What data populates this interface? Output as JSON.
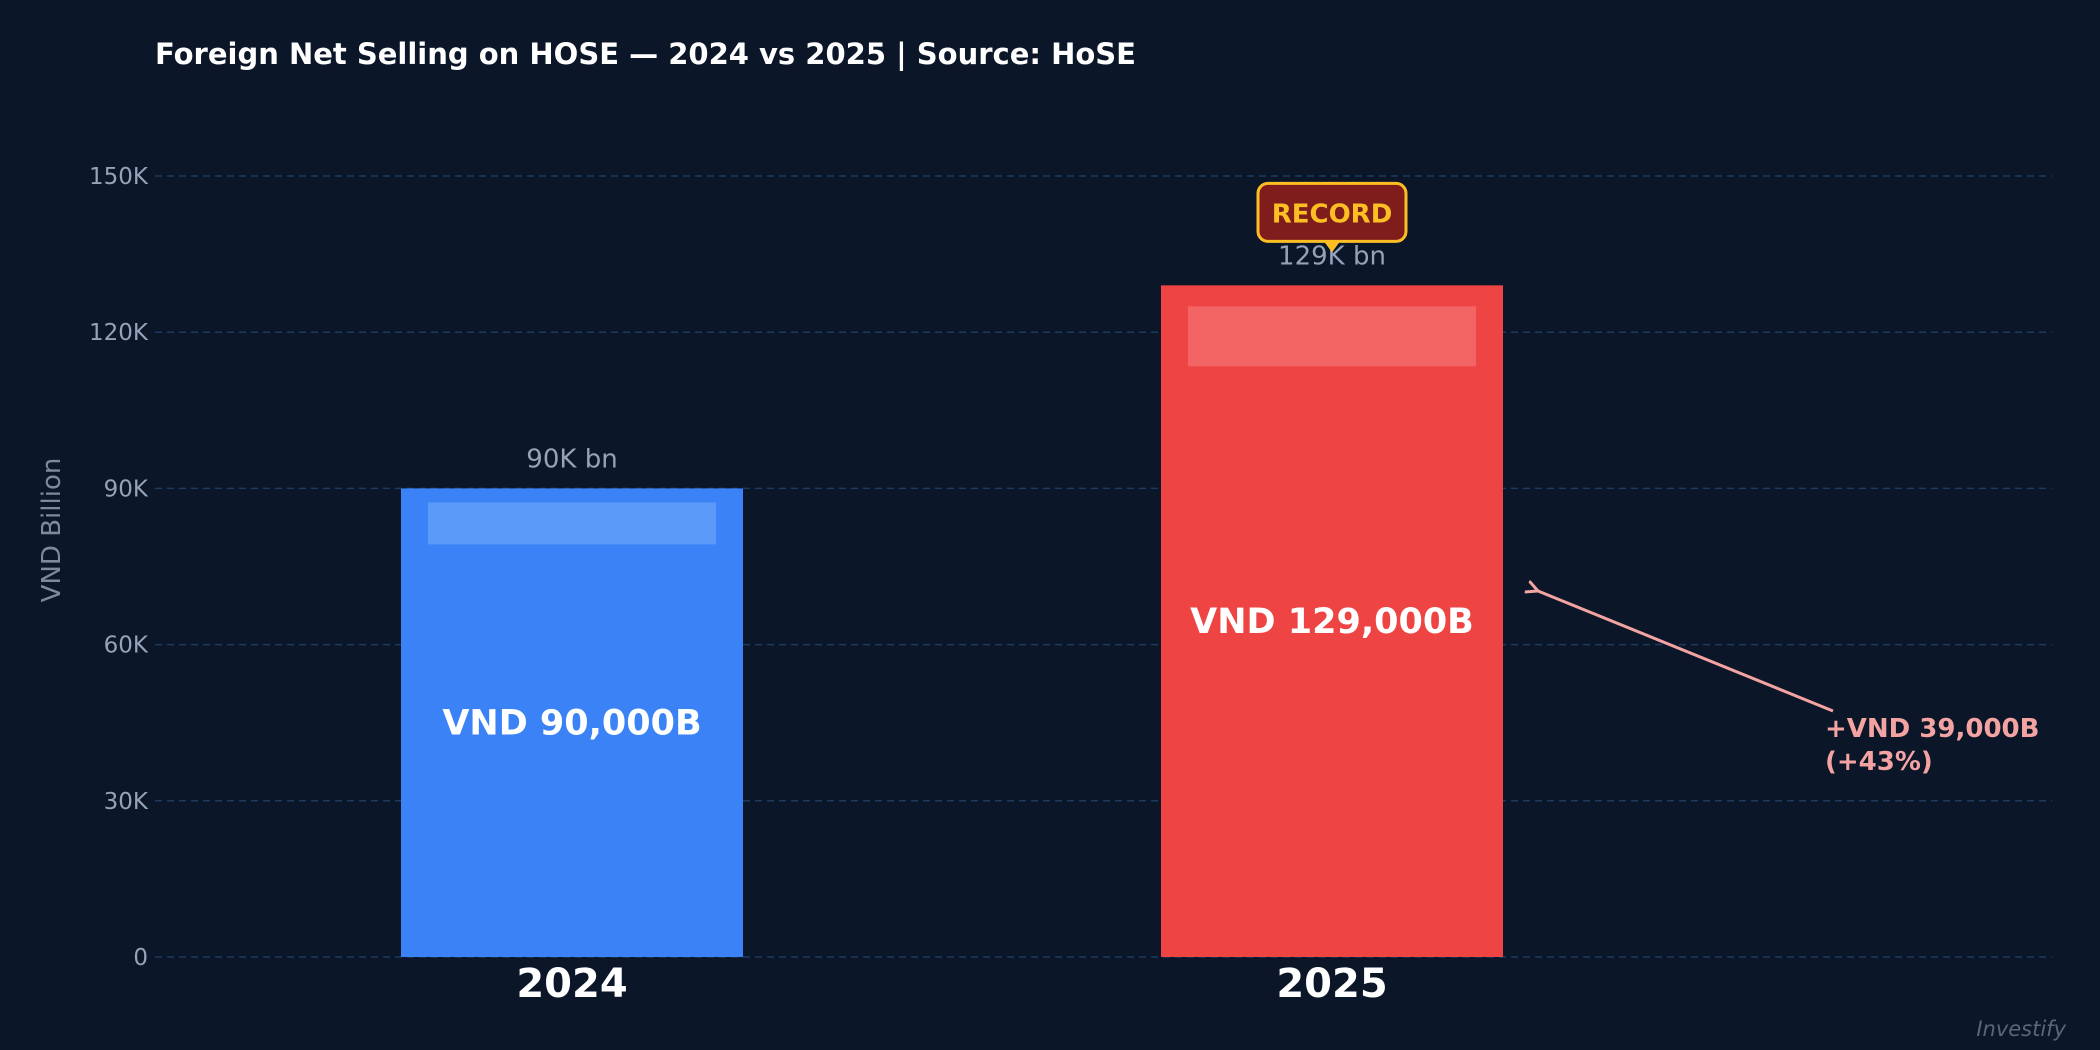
{
  "chart_data": {
    "type": "bar",
    "title": "Foreign Net Selling on HOSE — 2024 vs 2025  |  Source: HoSE",
    "ylabel": "VND Billion",
    "xlabel": "",
    "ylim": [
      0,
      150000
    ],
    "yticks": [
      0,
      30000,
      60000,
      90000,
      120000,
      150000
    ],
    "ytick_labels": [
      "0",
      "30K",
      "60K",
      "90K",
      "120K",
      "150K"
    ],
    "grid": true,
    "categories": [
      "2024",
      "2025"
    ],
    "values": [
      90000,
      129000
    ],
    "colors": [
      "#3b82f6",
      "#ef4444"
    ],
    "highlight_colors": [
      "#5b9af8",
      "#f36464"
    ],
    "top_labels": [
      "90K bn",
      "129K bn"
    ],
    "inner_labels": [
      "VND 90,000B",
      "VND 129,000B"
    ],
    "badge": {
      "text": "RECORD",
      "category_index": 1,
      "fill": "#7f1d1d",
      "border": "#fbbf24"
    },
    "annotation": {
      "lines": [
        "+VND 39,000B",
        "(+43%)"
      ],
      "category_index": 1,
      "color": "#f4a3a3"
    }
  },
  "watermark": "Investify",
  "colors": {
    "background": "#0b1628",
    "grid": "#1e3a5f",
    "text": "#ffffff",
    "muted": "#94a3b8"
  }
}
